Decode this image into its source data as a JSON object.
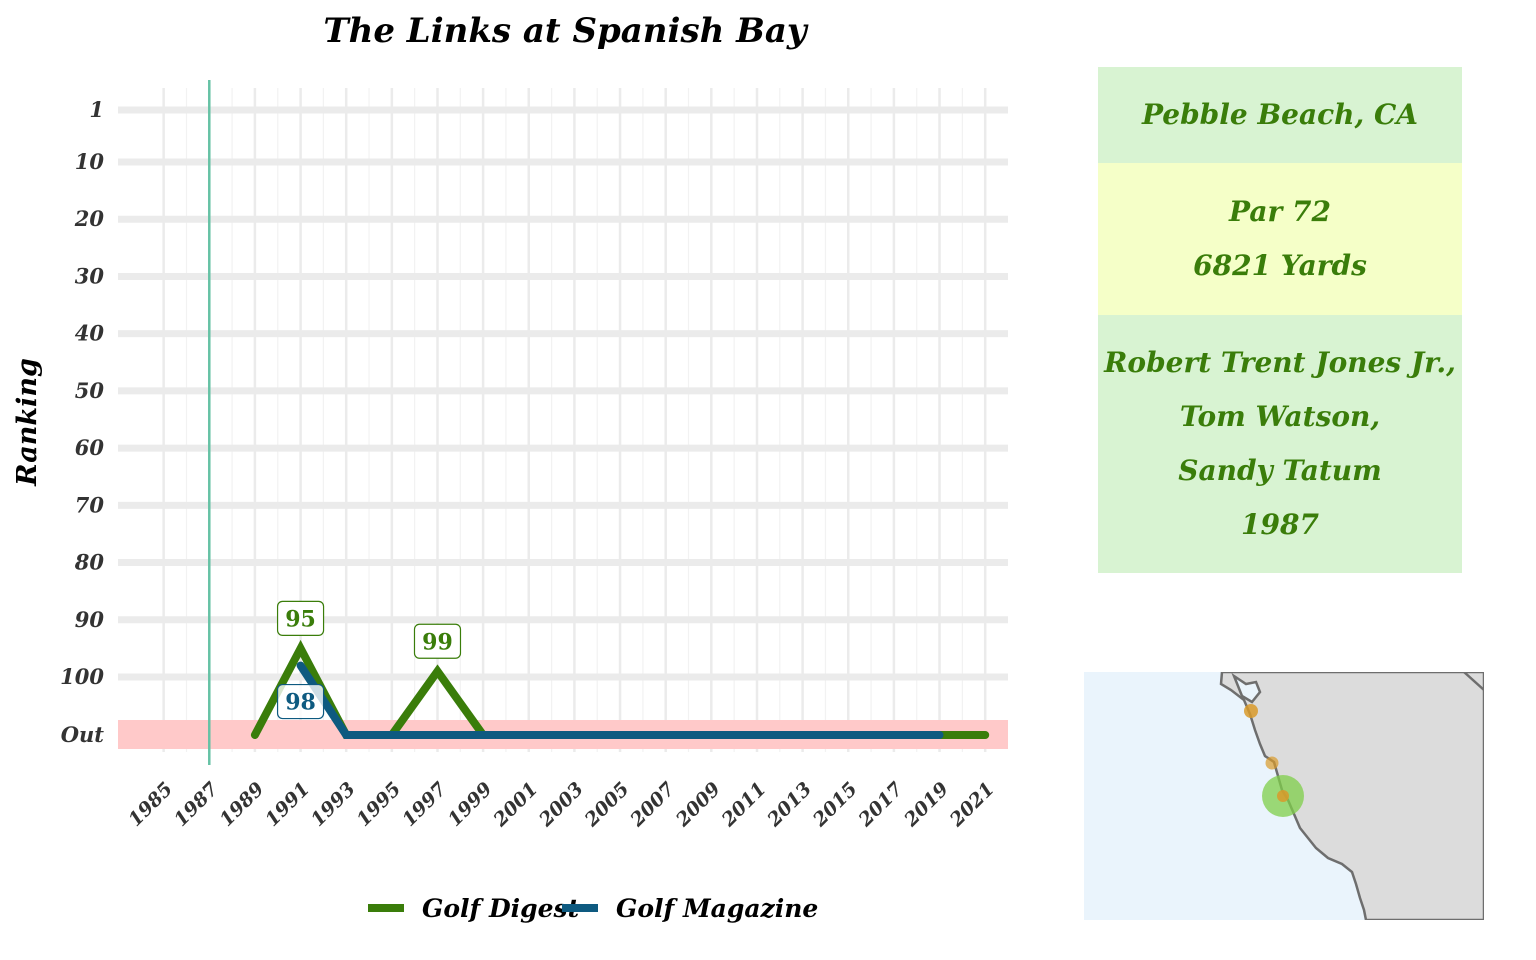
{
  "chart_data": {
    "type": "line",
    "title": "The Links at Spanish Bay",
    "ylabel": "Ranking",
    "yticks": [
      "1",
      "10",
      "20",
      "30",
      "40",
      "50",
      "60",
      "70",
      "80",
      "90",
      "100",
      "Out"
    ],
    "xticks": [
      "1985",
      "1987",
      "1989",
      "1991",
      "1993",
      "1995",
      "1997",
      "1999",
      "2001",
      "2003",
      "2005",
      "2007",
      "2009",
      "2011",
      "2013",
      "2015",
      "2017",
      "2019",
      "2021"
    ],
    "xlim": [
      1983,
      2022
    ],
    "opened_year": 1987,
    "out_band_color": "#ffc9c9",
    "series": [
      {
        "name": "Golf Digest",
        "color": "#3a7d0a",
        "x": [
          1989,
          1991,
          1993,
          1995,
          1997,
          1999,
          2001,
          2003,
          2005,
          2007,
          2009,
          2011,
          2013,
          2015,
          2017,
          2019,
          2021
        ],
        "y": [
          "Out",
          95,
          "Out",
          "Out",
          99,
          "Out",
          "Out",
          "Out",
          "Out",
          "Out",
          "Out",
          "Out",
          "Out",
          "Out",
          "Out",
          "Out",
          "Out"
        ]
      },
      {
        "name": "Golf Magazine",
        "color": "#0e5a80",
        "x": [
          1991,
          1993,
          1995,
          1997,
          1999,
          2001,
          2003,
          2005,
          2007,
          2009,
          2011,
          2013,
          2015,
          2017,
          2019
        ],
        "y": [
          98,
          "Out",
          "Out",
          "Out",
          "Out",
          "Out",
          "Out",
          "Out",
          "Out",
          "Out",
          "Out",
          "Out",
          "Out",
          "Out",
          "Out"
        ]
      }
    ],
    "annotations": [
      {
        "series": "Golf Digest",
        "x": 1991,
        "label": "95"
      },
      {
        "series": "Golf Digest",
        "x": 1997,
        "label": "99"
      },
      {
        "series": "Golf Magazine",
        "x": 1991,
        "label": "98"
      }
    ],
    "legend": {
      "position": "bottom",
      "entries": [
        "Golf Digest",
        "Golf Magazine"
      ]
    }
  },
  "info": {
    "location": "Pebble Beach, CA",
    "par": "Par 72",
    "yards": "6821 Yards",
    "designers": [
      "Robert Trent Jones Jr.,",
      "Tom Watson,",
      "Sandy Tatum"
    ],
    "year": "1987"
  },
  "map": {
    "ocean_color": "#eaf4fc",
    "land_color": "#dcdcdc",
    "highlight_color": "#7fcf4a",
    "marker_color": "#d99a2a"
  }
}
